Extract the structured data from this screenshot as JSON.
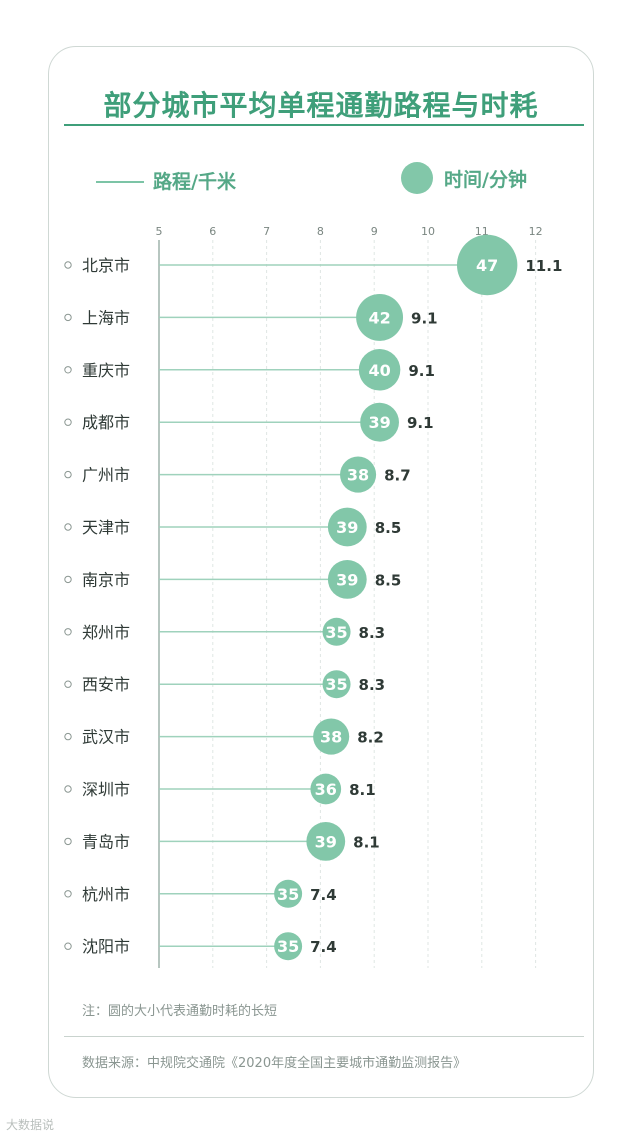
{
  "title": "部分城市平均单程通勤路程与时耗",
  "legend": {
    "line_label": "路程/千米",
    "circle_label": "时间/分钟"
  },
  "note": "注：圆的大小代表通勤时耗的长短",
  "source": "数据来源：中规院交通院《2020年度全国主要城市通勤监测报告》",
  "watermark": "大数据说",
  "colors": {
    "accent": "#3f9f7a",
    "bubble": "#82c7a9",
    "line": "#9fd2bc",
    "grid": "#dfe6e3",
    "text": "#2f3a36"
  },
  "chart_data": {
    "type": "scatter",
    "title": "部分城市平均单程通勤路程与时耗",
    "x_ticks": [
      5,
      6,
      7,
      8,
      9,
      10,
      11,
      12
    ],
    "xlim": [
      5,
      12
    ],
    "categories": [
      "北京市",
      "上海市",
      "重庆市",
      "成都市",
      "广州市",
      "天津市",
      "南京市",
      "郑州市",
      "西安市",
      "武汉市",
      "深圳市",
      "青岛市",
      "杭州市",
      "沈阳市"
    ],
    "series": [
      {
        "name": "路程/千米",
        "values": [
          11.1,
          9.1,
          9.1,
          9.1,
          8.7,
          8.5,
          8.5,
          8.3,
          8.3,
          8.2,
          8.1,
          8.1,
          7.4,
          7.4
        ]
      },
      {
        "name": "时间/分钟",
        "values": [
          47,
          42,
          40,
          39,
          38,
          39,
          39,
          35,
          35,
          38,
          36,
          39,
          35,
          35
        ]
      }
    ],
    "grid": true,
    "legend_position": "top"
  }
}
